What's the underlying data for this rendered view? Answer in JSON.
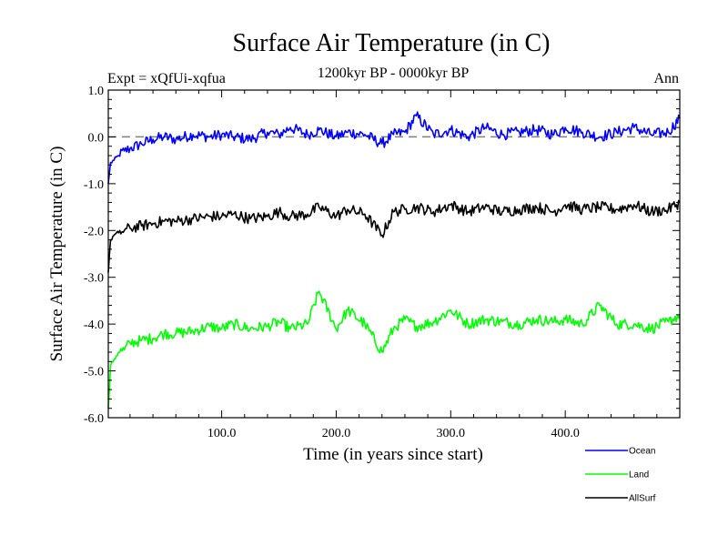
{
  "chart_data": {
    "type": "line",
    "title": "Surface Air Temperature (in C)",
    "experiment_label": "Expt = xQfUi-xqfua",
    "period_label": "1200kyr BP - 0000kyr BP",
    "season_label": "Ann",
    "xlabel": "Time (in years since start)",
    "ylabel": "Surface Air Temperature (in C)",
    "xlim": [
      1,
      500
    ],
    "ylim": [
      -6.0,
      1.0
    ],
    "x_ticks": [
      100,
      200,
      300,
      400
    ],
    "x_tick_labels": [
      "100.0",
      "200.0",
      "300.0",
      "400.0"
    ],
    "y_ticks": [
      -6,
      -5,
      -4,
      -3,
      -2,
      -1,
      0,
      1
    ],
    "y_tick_labels": [
      "-6.0",
      "-5.0",
      "-4.0",
      "-3.0",
      "-2.0",
      "-1.0",
      "0.0",
      "1.0"
    ],
    "reference_line": {
      "y": 0.0,
      "style": "dashed",
      "color": "#808080"
    },
    "legend_position": "bottom-right, outside plot",
    "series": [
      {
        "name": "Ocean",
        "color": "#0000ff",
        "x": [
          1,
          3,
          6,
          10,
          15,
          20,
          30,
          40,
          50,
          60,
          75,
          90,
          100,
          110,
          125,
          140,
          150,
          160,
          175,
          185,
          200,
          210,
          225,
          240,
          250,
          260,
          270,
          285,
          300,
          315,
          330,
          345,
          360,
          375,
          390,
          400,
          415,
          430,
          445,
          460,
          475,
          490,
          500
        ],
        "values": [
          -1.0,
          -0.55,
          -0.5,
          -0.4,
          -0.3,
          -0.25,
          -0.15,
          -0.05,
          0.0,
          -0.05,
          0.05,
          0.0,
          0.05,
          0.0,
          -0.05,
          0.1,
          0.05,
          0.2,
          0.05,
          0.15,
          0.0,
          0.1,
          0.05,
          -0.15,
          0.05,
          0.1,
          0.45,
          0.05,
          0.15,
          0.0,
          0.2,
          0.05,
          0.1,
          0.15,
          0.05,
          0.2,
          0.1,
          0.0,
          0.1,
          0.2,
          0.05,
          0.1,
          0.4
        ]
      },
      {
        "name": "Land",
        "color": "#00ff00",
        "x": [
          1,
          3,
          6,
          10,
          15,
          20,
          30,
          40,
          50,
          60,
          75,
          90,
          100,
          110,
          125,
          140,
          150,
          160,
          175,
          185,
          200,
          210,
          225,
          240,
          250,
          260,
          270,
          285,
          300,
          315,
          330,
          345,
          360,
          375,
          390,
          400,
          415,
          430,
          445,
          460,
          475,
          490,
          500
        ],
        "values": [
          -5.8,
          -4.9,
          -4.75,
          -4.6,
          -4.55,
          -4.4,
          -4.35,
          -4.3,
          -4.2,
          -4.2,
          -4.15,
          -4.05,
          -4.1,
          -4.0,
          -4.1,
          -4.05,
          -3.95,
          -4.1,
          -4.0,
          -3.3,
          -4.1,
          -3.7,
          -4.0,
          -4.6,
          -4.1,
          -3.9,
          -4.05,
          -3.95,
          -3.7,
          -4.0,
          -3.9,
          -3.95,
          -4.0,
          -3.9,
          -3.95,
          -3.9,
          -4.0,
          -3.6,
          -4.0,
          -4.0,
          -4.1,
          -3.95,
          -3.8
        ]
      },
      {
        "name": "AllSurf",
        "color": "#000000",
        "x": [
          1,
          3,
          6,
          10,
          15,
          20,
          30,
          40,
          50,
          60,
          75,
          90,
          100,
          110,
          125,
          140,
          150,
          160,
          175,
          185,
          200,
          210,
          225,
          240,
          250,
          260,
          270,
          285,
          300,
          315,
          330,
          345,
          360,
          375,
          390,
          400,
          415,
          430,
          445,
          460,
          475,
          490,
          500
        ],
        "values": [
          -2.9,
          -2.2,
          -2.1,
          -2.05,
          -2.0,
          -1.95,
          -1.9,
          -1.85,
          -1.8,
          -1.8,
          -1.75,
          -1.7,
          -1.7,
          -1.65,
          -1.75,
          -1.7,
          -1.6,
          -1.7,
          -1.65,
          -1.5,
          -1.7,
          -1.55,
          -1.65,
          -2.1,
          -1.6,
          -1.55,
          -1.5,
          -1.6,
          -1.45,
          -1.6,
          -1.5,
          -1.6,
          -1.55,
          -1.5,
          -1.6,
          -1.45,
          -1.55,
          -1.5,
          -1.55,
          -1.45,
          -1.6,
          -1.55,
          -1.4
        ]
      }
    ]
  }
}
